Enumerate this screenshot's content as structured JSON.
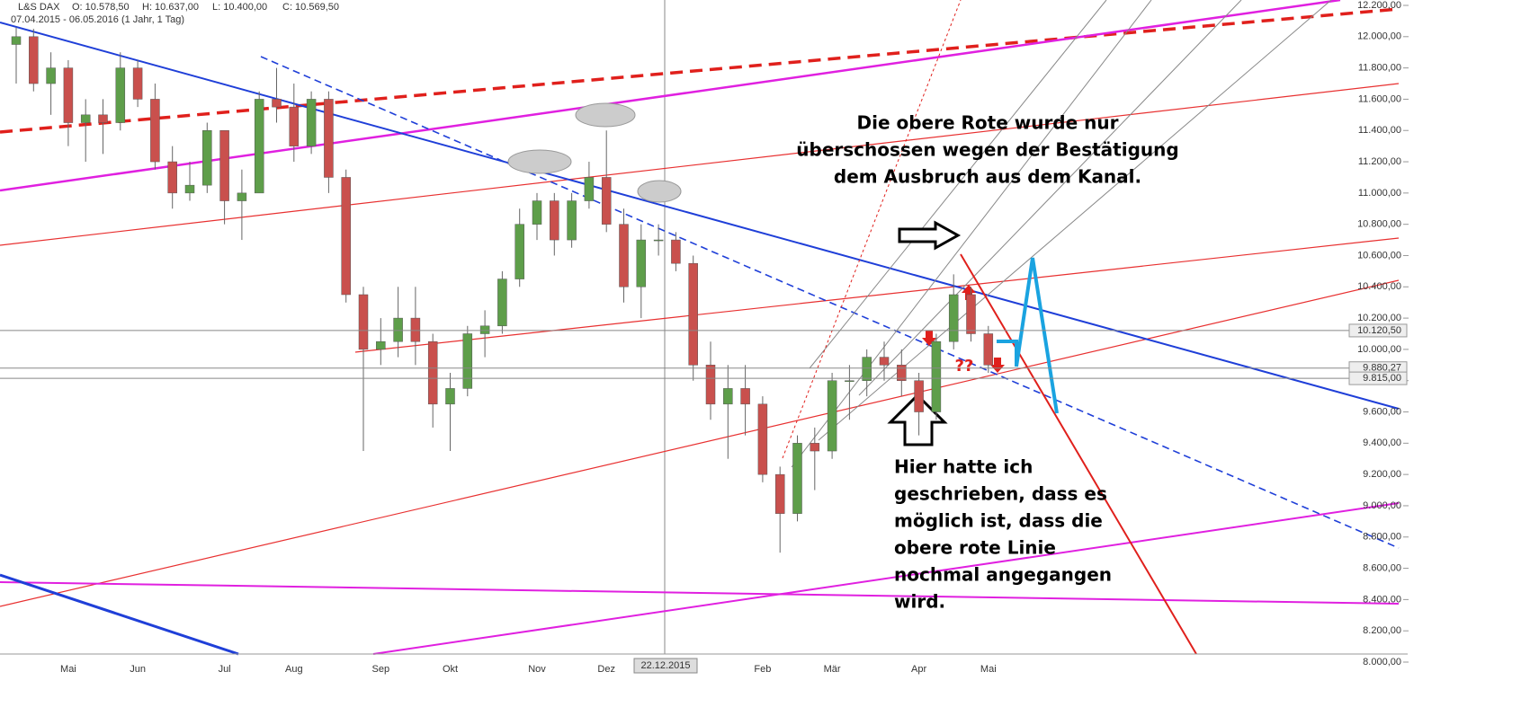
{
  "chart_data": {
    "type": "candlestick",
    "title": "L&S DAX",
    "ohlc_labels": [
      "O: 10.578,50",
      "H: 10.637,00",
      "L: 10.400,00",
      "C: 10.569,50"
    ],
    "subtitle": "07.04.2015 - 06.05.2016 (1 Jahr, 1 Tag)",
    "crosshair_label": "22.12.2015",
    "categories": [
      null,
      null,
      null,
      "Mai",
      null,
      null,
      null,
      "Jun",
      null,
      null,
      null,
      null,
      "Jul",
      null,
      null,
      null,
      "Aug",
      null,
      null,
      null,
      null,
      "Sep",
      null,
      null,
      null,
      "Okt",
      null,
      null,
      null,
      null,
      "Nov",
      null,
      null,
      null,
      "Dez",
      null,
      null,
      null,
      null,
      null,
      null,
      null,
      null,
      "Feb",
      null,
      null,
      null,
      "Mär",
      null,
      null,
      null,
      null,
      "Apr",
      null,
      null,
      null,
      "Mai"
    ],
    "open": [
      11950,
      12000,
      11700,
      11800,
      11450,
      11500,
      11450,
      11800,
      11600,
      11200,
      11000,
      11050,
      11400,
      10950,
      11000,
      11600,
      11550,
      11300,
      11600,
      11100,
      10350,
      10000,
      10050,
      10200,
      10050,
      9650,
      9750,
      10100,
      10150,
      10450,
      10800,
      10950,
      10700,
      10950,
      11100,
      10800,
      10400,
      10700,
      10700,
      10550,
      9900,
      9650,
      9750,
      9650,
      9200,
      8950,
      9400,
      9350,
      9800,
      9800,
      9950,
      9900,
      9800,
      9600,
      10050,
      10350,
      10100
    ],
    "high": [
      12060,
      12050,
      11900,
      11850,
      11600,
      11600,
      11900,
      11850,
      11700,
      11300,
      11200,
      11450,
      11400,
      11150,
      11650,
      11800,
      11700,
      11650,
      11650,
      11150,
      10400,
      10200,
      10400,
      10400,
      10100,
      9850,
      10150,
      10250,
      10500,
      10900,
      11000,
      11000,
      11000,
      11200,
      11400,
      10900,
      10800,
      10800,
      10750,
      10600,
      10050,
      9900,
      9900,
      9700,
      9250,
      9450,
      9500,
      9850,
      9900,
      10000,
      10050,
      10000,
      9850,
      10100,
      10480,
      10400,
      10150
    ],
    "low": [
      11700,
      11650,
      11500,
      11300,
      11200,
      11250,
      11400,
      11550,
      11150,
      10900,
      10950,
      11000,
      10800,
      10700,
      11000,
      11450,
      11200,
      11250,
      11000,
      10300,
      9350,
      9900,
      9950,
      9900,
      9500,
      9350,
      9700,
      9950,
      10100,
      10400,
      10700,
      10600,
      10650,
      10900,
      10750,
      10300,
      10200,
      10600,
      10500,
      9800,
      9550,
      9300,
      9450,
      9150,
      8700,
      8900,
      9100,
      9300,
      9550,
      9700,
      9800,
      9700,
      9450,
      9550,
      10000,
      10050,
      9850
    ],
    "close": [
      12000,
      11700,
      11800,
      11450,
      11500,
      11450,
      11800,
      11600,
      11200,
      11000,
      11050,
      11400,
      10950,
      11000,
      11600,
      11550,
      11300,
      11600,
      11100,
      10350,
      10000,
      10050,
      10200,
      10050,
      9650,
      9750,
      10100,
      10150,
      10450,
      10800,
      10950,
      10700,
      10950,
      11100,
      10800,
      10400,
      10700,
      10700,
      10550,
      9900,
      9650,
      9750,
      9650,
      9200,
      8950,
      9400,
      9350,
      9800,
      9800,
      9950,
      9900,
      9800,
      9600,
      10050,
      10350,
      10100,
      9900
    ],
    "up_color": "#5e9e4a",
    "down_color": "#c9504d",
    "ylim": [
      8000,
      12200
    ],
    "yticks": [
      {
        "value": 8000,
        "label": "8.000,00"
      },
      {
        "value": 8200,
        "label": "8.200,00"
      },
      {
        "value": 8400,
        "label": "8.400,00"
      },
      {
        "value": 8600,
        "label": "8.600,00"
      },
      {
        "value": 8800,
        "label": "8.800,00"
      },
      {
        "value": 9000,
        "label": "9.000,00"
      },
      {
        "value": 9200,
        "label": "9.200,00"
      },
      {
        "value": 9400,
        "label": "9.400,00"
      },
      {
        "value": 9600,
        "label": "9.600,00"
      },
      {
        "value": 9800,
        "label": "9.800,00"
      },
      {
        "value": 10000,
        "label": "10.000,00"
      },
      {
        "value": 10200,
        "label": "10.200,00"
      },
      {
        "value": 10400,
        "label": "10.400,00"
      },
      {
        "value": 10600,
        "label": "10.600,00"
      },
      {
        "value": 10800,
        "label": "10.800,00"
      },
      {
        "value": 11000,
        "label": "11.000,00"
      },
      {
        "value": 11200,
        "label": "11.200,00"
      },
      {
        "value": 11400,
        "label": "11.400,00"
      },
      {
        "value": 11600,
        "label": "11.600,00"
      },
      {
        "value": 11800,
        "label": "11.800,00"
      },
      {
        "value": 12000,
        "label": "12.000,00"
      },
      {
        "value": 12200,
        "label": "12.200,00"
      }
    ],
    "price_tags": [
      {
        "value": 10120.5,
        "label": "10.120,50"
      },
      {
        "value": 9880.27,
        "label": "9.880,27"
      },
      {
        "value": 9815,
        "label": "9.815,00"
      }
    ],
    "annotations": [
      [
        "Die obere Rote wurde nur",
        "überschossen wegen der Bestätigung",
        "dem Ausbruch aus dem Kanal."
      ],
      [
        "Hier hatte ich",
        "geschrieben, dass es",
        "möglich ist, dass die",
        "obere rote Linie",
        "nochmal angegangen",
        "wird."
      ],
      [
        "??"
      ]
    ]
  }
}
